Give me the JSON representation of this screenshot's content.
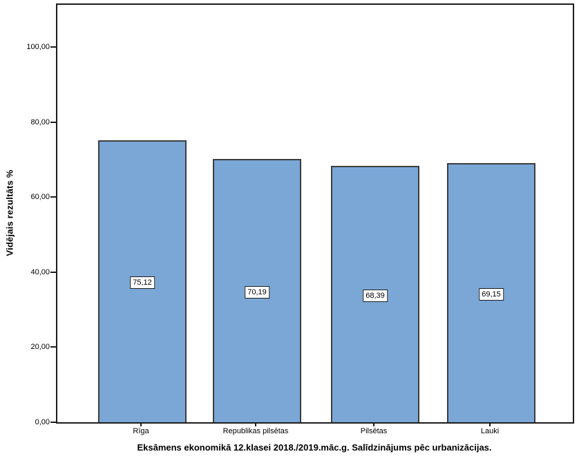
{
  "chart_data": {
    "type": "bar",
    "title": "Eksāmens ekonomikā 12.klasei 2018./2019.māc.g. Salīdzinājums pēc urbanizācijas.",
    "ylabel": "Vidējais rezultāts %",
    "xlabel": "",
    "categories": [
      "Rīga",
      "Republikas pilsētas",
      "Pilsētas",
      "Lauki"
    ],
    "values": [
      75.12,
      70.19,
      68.39,
      69.15
    ],
    "value_labels": [
      "75,12",
      "70,19",
      "68,39",
      "69,15"
    ],
    "yticks": [
      0,
      20,
      40,
      60,
      80,
      100
    ],
    "ytick_labels": [
      "0,00",
      "20,00",
      "40,00",
      "60,00",
      "80,00",
      "100,00"
    ],
    "ylim": [
      0,
      111.6
    ],
    "grid": false,
    "legend_position": "none",
    "bar_color": "#7AA7D6",
    "bar_border_color": "#3C3C3C",
    "frame_color": "#1C1C1C",
    "background_color": "#FFFFFF"
  }
}
